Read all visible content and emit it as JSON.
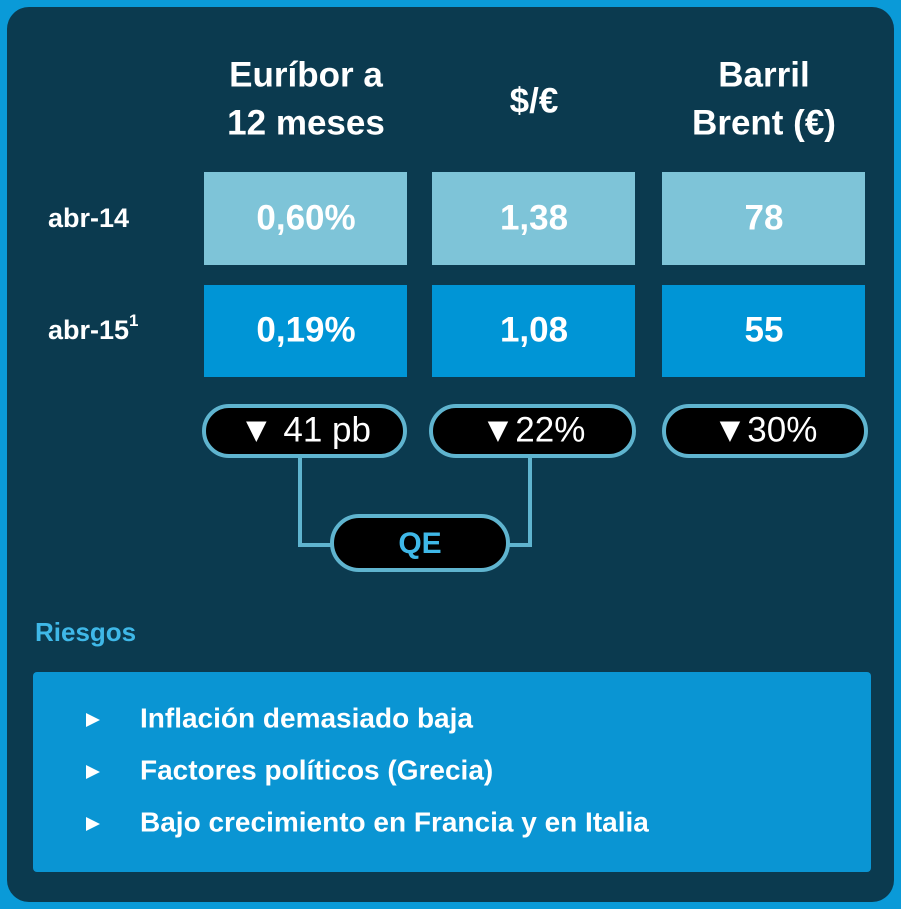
{
  "columns": [
    [
      "Euríbor a",
      "12 meses"
    ],
    [
      "$/€"
    ],
    [
      "Barril",
      "Brent (€)"
    ]
  ],
  "rows": [
    {
      "label": "abr-14",
      "values": [
        "0,60%",
        "1,38",
        "78"
      ]
    },
    {
      "label": "abr-15",
      "footnote": "1",
      "values": [
        "0,19%",
        "1,08",
        "55"
      ]
    }
  ],
  "changes": [
    "▼ 41 pb",
    "▼22%",
    "▼30%"
  ],
  "qe": "QE",
  "risks": {
    "title": "Riesgos",
    "items": [
      "Inflación demasiado baja",
      "Factores políticos (Grecia)",
      "Bajo crecimiento en Francia y en Italia"
    ]
  }
}
